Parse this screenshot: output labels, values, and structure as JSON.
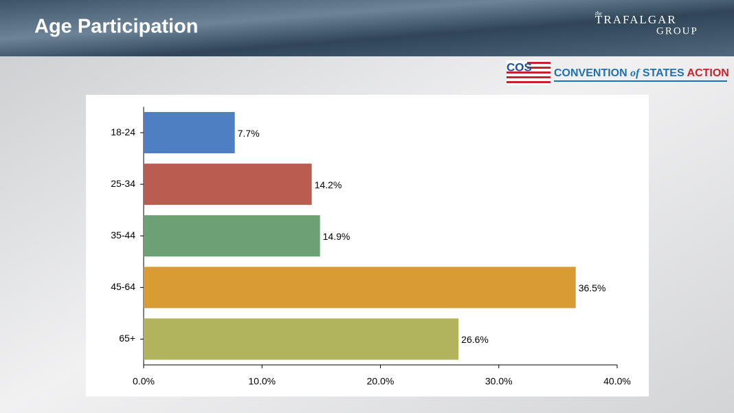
{
  "chart_data": {
    "type": "bar",
    "orientation": "horizontal",
    "title": "Age Participation",
    "categories": [
      "18-24",
      "25-34",
      "35-44",
      "45-64",
      "65+"
    ],
    "values": [
      7.7,
      14.2,
      14.9,
      36.5,
      26.6
    ],
    "value_labels": [
      "7.7%",
      "14.2%",
      "14.9%",
      "36.5%",
      "26.6%"
    ],
    "colors": [
      "#4f7fc3",
      "#bb5c51",
      "#6ba173",
      "#d99b34",
      "#b2b35d"
    ],
    "xlim": [
      0,
      40
    ],
    "xticks": [
      {
        "value": 0,
        "label": "0.0%"
      },
      {
        "value": 10,
        "label": "10.0%"
      },
      {
        "value": 20,
        "label": "20.0%"
      },
      {
        "value": 30,
        "label": "30.0%"
      },
      {
        "value": 40,
        "label": "40.0%"
      }
    ],
    "grid": false
  },
  "logos": {
    "trafalgar": {
      "small": "the",
      "name": "TRAFALGAR",
      "group": "GROUP"
    },
    "cos": {
      "mark": "COS",
      "words": [
        "CONVENTION",
        "of",
        "STATES",
        "ACTION"
      ]
    }
  }
}
